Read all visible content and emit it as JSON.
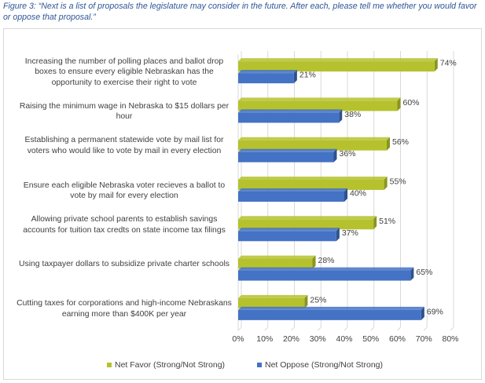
{
  "caption": "Figure 3: “Next is a list of proposals the legislature may consider in the future.  After each, please tell me whether you would favor or oppose that proposal.”",
  "colors": {
    "favor": "#B5C22E",
    "favor_dark": "#8A9420",
    "oppose": "#4472C4",
    "oppose_dark": "#2F528F",
    "grid": "#d9d9d9",
    "text": "#404040"
  },
  "chart_data": {
    "type": "bar",
    "orientation": "horizontal",
    "title": "",
    "categories": [
      "Increasing the number of polling places and ballot drop boxes to ensure every eligible Nebraskan has the opportunity to exercise their right to vote",
      "Raising the minimum wage in Nebraska to $15 dollars per hour",
      "Establishing a permanent statewide vote by mail list for voters who would like to vote by mail in every election",
      "Ensure each eligible Nebraska voter recieves a ballot to vote by mail for every election",
      "Allowing private school parents to establish savings accounts for tuition tax credts on state income tax filings",
      "Using taxpayer dollars to subsidize private charter schools",
      "Cutting taxes for corporations and high-income Nebraskans earning more than $400K per year"
    ],
    "series": [
      {
        "name": "Net Favor (Strong/Not Strong)",
        "values": [
          74,
          60,
          56,
          55,
          51,
          28,
          25
        ]
      },
      {
        "name": "Net Oppose (Strong/Not Strong)",
        "values": [
          21,
          38,
          36,
          40,
          37,
          65,
          69
        ]
      }
    ],
    "value_labels": [
      [
        "74%",
        "60%",
        "56%",
        "55%",
        "51%",
        "28%",
        "25%"
      ],
      [
        "21%",
        "38%",
        "36%",
        "40%",
        "37%",
        "65%",
        "69%"
      ]
    ],
    "xlim": [
      0,
      80
    ],
    "x_ticks": [
      "0%",
      "10%",
      "20%",
      "30%",
      "40%",
      "50%",
      "60%",
      "70%",
      "80%"
    ],
    "xlabel": "",
    "ylabel": "",
    "grid": true,
    "legend_position": "bottom"
  }
}
